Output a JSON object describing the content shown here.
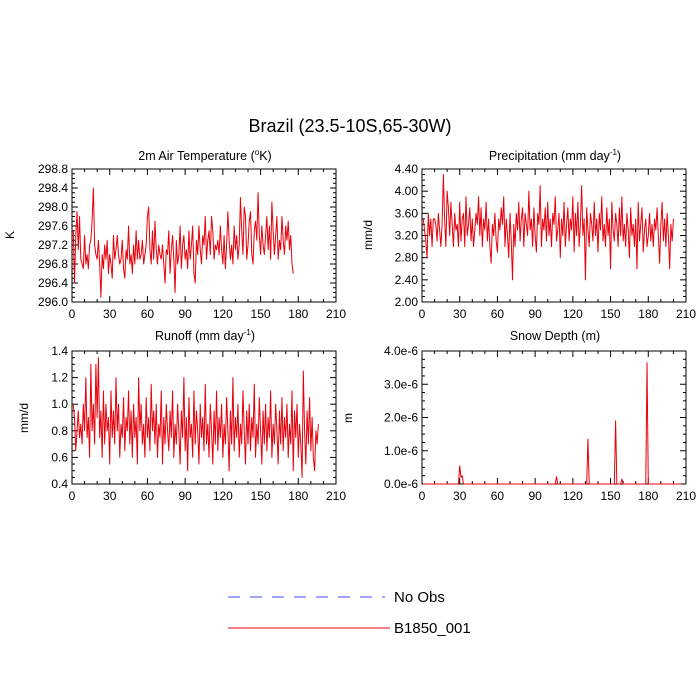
{
  "figure_title": "Brazil (23.5-10S,65-30W)",
  "colors": {
    "model_line": "#e8000b",
    "obs_line": "#4444ff",
    "axis": "#000000"
  },
  "legend": [
    {
      "label": "No Obs",
      "style": "dashed",
      "color": "#4444ff"
    },
    {
      "label": "B1850_001",
      "style": "solid",
      "color": "#e8000b"
    }
  ],
  "chart_data": [
    {
      "type": "line",
      "title": "2m Air Temperature (",
      "title_superscript": "o",
      "title_suffix": "K)",
      "ylabel": "K",
      "xlim": [
        0,
        210
      ],
      "ylim": [
        296.0,
        298.8
      ],
      "x_ticks": [
        0,
        30,
        60,
        90,
        120,
        150,
        180,
        210
      ],
      "y_ticks": [
        296.0,
        296.4,
        296.8,
        297.2,
        297.6,
        298.0,
        298.4,
        298.8
      ],
      "y_tick_labels": [
        "296.0",
        "296.4",
        "296.8",
        "297.2",
        "297.6",
        "298.0",
        "298.4",
        "298.8"
      ],
      "series": [
        {
          "name": "B1850_001",
          "x_start": 1,
          "values": [
            297.5,
            296.4,
            297.4,
            297.9,
            297.1,
            297.8,
            296.9,
            296.8,
            296.7,
            297.4,
            296.8,
            297.0,
            296.7,
            297.2,
            297.3,
            297.7,
            298.4,
            297.2,
            297.0,
            296.9,
            297.3,
            296.8,
            296.1,
            297.0,
            296.7,
            297.2,
            296.9,
            297.3,
            296.6,
            297.0,
            296.8,
            296.5,
            297.4,
            296.9,
            297.1,
            297.4,
            297.0,
            296.8,
            296.9,
            297.3,
            296.7,
            296.5,
            297.1,
            296.9,
            297.6,
            296.8,
            297.0,
            296.6,
            297.2,
            296.8,
            297.5,
            296.9,
            297.3,
            296.9,
            297.0,
            297.3,
            296.8,
            297.0,
            297.2,
            297.8,
            298.0,
            297.1,
            296.8,
            297.5,
            296.9,
            297.7,
            297.1,
            296.8,
            297.2,
            297.0,
            296.9,
            297.2,
            296.8,
            296.4,
            297.1,
            297.0,
            297.5,
            296.6,
            297.1,
            297.4,
            296.9,
            296.2,
            297.3,
            296.8,
            297.0,
            297.6,
            296.7,
            297.2,
            297.4,
            296.9,
            297.1,
            296.7,
            297.5,
            296.9,
            297.2,
            297.6,
            296.6,
            296.4,
            297.3,
            297.0,
            297.6,
            297.1,
            296.8,
            297.4,
            297.2,
            297.8,
            296.9,
            297.3,
            297.5,
            297.0,
            297.8,
            297.5,
            296.9,
            297.2,
            297.1,
            297.3,
            297.0,
            297.6,
            297.1,
            296.8,
            297.4,
            296.7,
            297.2,
            297.9,
            297.3,
            296.9,
            297.2,
            296.8,
            297.6,
            297.1,
            297.4,
            296.9,
            297.2,
            298.2,
            297.5,
            297.0,
            298.0,
            297.8,
            296.9,
            297.2,
            297.7,
            297.9,
            297.0,
            296.8,
            297.5,
            297.7,
            297.3,
            298.3,
            297.4,
            297.0,
            297.6,
            297.2,
            297.0,
            297.4,
            297.8,
            297.1,
            297.6,
            296.9,
            298.1,
            297.5,
            297.0,
            297.4,
            297.8,
            296.9,
            297.3,
            297.1,
            297.8,
            297.3,
            297.0,
            297.6,
            297.3,
            297.7,
            297.1,
            297.4,
            296.8,
            296.6
          ]
        }
      ]
    },
    {
      "type": "line",
      "title": "Precipitation (mm day",
      "title_superscript": "-1",
      "title_suffix": ")",
      "ylabel": "mm/d",
      "xlim": [
        0,
        210
      ],
      "ylim": [
        2.0,
        4.4
      ],
      "x_ticks": [
        0,
        30,
        60,
        90,
        120,
        150,
        180,
        210
      ],
      "y_ticks": [
        2.0,
        2.4,
        2.8,
        3.2,
        3.6,
        4.0,
        4.4
      ],
      "y_tick_labels": [
        "2.00",
        "2.40",
        "2.80",
        "3.20",
        "3.60",
        "4.00",
        "4.40"
      ],
      "series": [
        {
          "name": "B1850_001",
          "values": [
            3.5,
            3.3,
            3.1,
            2.8,
            3.6,
            3.2,
            3.5,
            3.0,
            3.5,
            3.5,
            3.4,
            3.1,
            3.6,
            3.3,
            3.0,
            3.4,
            4.3,
            3.5,
            3.0,
            4.0,
            3.7,
            3.2,
            3.8,
            3.4,
            3.0,
            3.6,
            3.3,
            3.4,
            3.0,
            3.8,
            3.1,
            3.5,
            3.6,
            3.0,
            3.9,
            3.2,
            3.4,
            3.7,
            3.1,
            3.5,
            3.0,
            3.3,
            3.6,
            3.4,
            3.9,
            3.2,
            3.7,
            3.0,
            3.5,
            3.3,
            3.8,
            3.1,
            3.5,
            3.0,
            2.7,
            3.4,
            3.2,
            3.6,
            3.1,
            2.9,
            3.5,
            3.3,
            3.7,
            3.4,
            3.9,
            3.0,
            3.5,
            3.2,
            2.8,
            3.6,
            3.1,
            2.4,
            3.4,
            3.0,
            3.6,
            3.3,
            3.8,
            3.1,
            3.5,
            3.7,
            3.0,
            3.6,
            3.4,
            3.2,
            4.0,
            3.3,
            3.5,
            3.0,
            3.7,
            3.2,
            2.9,
            3.6,
            3.4,
            4.1,
            3.0,
            3.5,
            3.3,
            3.7,
            3.1,
            3.8,
            3.2,
            3.5,
            3.0,
            3.6,
            3.4,
            3.9,
            3.1,
            3.3,
            3.6,
            2.8,
            3.5,
            3.2,
            3.8,
            3.0,
            3.4,
            3.7,
            3.1,
            3.5,
            3.3,
            3.9,
            2.9,
            3.6,
            3.2,
            3.8,
            3.0,
            3.4,
            4.1,
            3.2,
            3.5,
            2.4,
            3.7,
            3.3,
            3.0,
            3.6,
            3.4,
            3.1,
            3.8,
            3.2,
            3.5,
            2.9,
            3.6,
            3.3,
            3.9,
            3.1,
            3.4,
            3.0,
            3.7,
            3.2,
            3.5,
            2.6,
            3.8,
            3.3,
            3.1,
            3.6,
            3.4,
            3.0,
            3.7,
            3.2,
            3.9,
            3.1,
            3.4,
            3.0,
            3.6,
            3.3,
            2.8,
            3.7,
            3.2,
            3.4,
            3.0,
            3.5,
            2.6,
            3.8,
            3.1,
            3.4,
            3.7,
            2.9,
            3.3,
            3.5,
            3.0,
            3.2,
            3.6,
            3.1,
            3.4,
            3.0,
            3.5,
            3.3,
            3.7,
            3.2,
            2.7,
            3.4,
            3.8,
            3.1,
            3.5,
            3.0,
            3.6,
            3.2,
            2.6,
            3.4,
            3.1,
            3.5
          ]
        }
      ]
    },
    {
      "type": "line",
      "title": "Runoff (mm day",
      "title_superscript": "-1",
      "title_suffix": ")",
      "ylabel": "mm/d",
      "xlim": [
        0,
        210
      ],
      "ylim": [
        0.4,
        1.4
      ],
      "x_ticks": [
        0,
        30,
        60,
        90,
        120,
        150,
        180,
        210
      ],
      "y_ticks": [
        0.4,
        0.6,
        0.8,
        1.0,
        1.2,
        1.4
      ],
      "y_tick_labels": [
        "0.4",
        "0.6",
        "0.8",
        "1.0",
        "1.2",
        "1.4"
      ],
      "series": [
        {
          "name": "B1850_001",
          "values": [
            1.0,
            0.9,
            0.65,
            0.8,
            0.95,
            0.75,
            0.85,
            0.7,
            1.0,
            0.8,
            1.2,
            0.75,
            0.9,
            0.6,
            1.3,
            0.8,
            1.0,
            0.7,
            1.3,
            0.9,
            1.35,
            0.75,
            0.95,
            0.6,
            1.1,
            0.7,
            1.0,
            0.8,
            0.9,
            0.55,
            1.1,
            0.75,
            0.95,
            0.7,
            1.2,
            0.8,
            1.0,
            0.6,
            0.85,
            0.75,
            1.05,
            0.65,
            0.9,
            0.8,
            1.1,
            0.7,
            0.95,
            0.6,
            1.0,
            0.75,
            0.9,
            0.55,
            1.2,
            0.8,
            1.0,
            0.7,
            0.85,
            0.6,
            1.05,
            0.75,
            0.9,
            0.65,
            1.15,
            0.8,
            0.95,
            0.7,
            1.0,
            0.6,
            0.85,
            0.75,
            1.1,
            0.55,
            0.9,
            0.7,
            1.0,
            0.8,
            0.65,
            0.95,
            0.75,
            1.1,
            0.6,
            0.85,
            0.7,
            1.0,
            0.8,
            0.55,
            0.95,
            0.75,
            1.2,
            0.65,
            0.9,
            0.5,
            1.05,
            0.75,
            0.85,
            0.6,
            1.1,
            0.7,
            0.95,
            0.8,
            0.55,
            1.0,
            0.75,
            0.9,
            0.65,
            1.15,
            0.7,
            0.85,
            0.6,
            1.0,
            0.8,
            0.55,
            0.95,
            0.7,
            1.1,
            0.65,
            0.9,
            0.75,
            1.0,
            0.6,
            0.85,
            0.7,
            1.05,
            0.8,
            0.5,
            0.95,
            0.7,
            1.2,
            0.65,
            0.9,
            0.75,
            1.0,
            0.6,
            0.85,
            0.7,
            1.1,
            0.8,
            0.55,
            0.95,
            0.7,
            1.0,
            0.65,
            0.9,
            0.75,
            1.15,
            0.6,
            0.85,
            0.7,
            1.05,
            0.8,
            0.55,
            0.95,
            0.7,
            1.0,
            0.65,
            0.9,
            0.75,
            1.1,
            0.6,
            0.85,
            0.7,
            1.0,
            0.8,
            0.55,
            0.95,
            0.7,
            1.05,
            0.65,
            0.9,
            0.75,
            1.0,
            0.6,
            0.85,
            0.7,
            1.1,
            0.5,
            0.95,
            0.75,
            1.0,
            0.6,
            0.85,
            0.7,
            0.45,
            1.25,
            0.8,
            0.55,
            0.95,
            0.7,
            1.05,
            0.65,
            0.9,
            0.6,
            0.5,
            0.8,
            0.7,
            0.85
          ]
        }
      ]
    },
    {
      "type": "line",
      "title": "Snow Depth (m)",
      "title_superscript": "",
      "title_suffix": "",
      "ylabel": "m",
      "xlim": [
        0,
        210
      ],
      "ylim": [
        0.0,
        4e-06
      ],
      "x_ticks": [
        0,
        30,
        60,
        90,
        120,
        150,
        180,
        210
      ],
      "y_ticks": [
        0.0,
        1e-06,
        2e-06,
        3e-06,
        4e-06
      ],
      "y_tick_labels": [
        "0.0e-6",
        "1.0e-6",
        "2.0e-6",
        "3.0e-6",
        "4.0e-6"
      ],
      "series": [
        {
          "name": "B1850_001",
          "values": [
            0,
            0,
            0,
            0,
            0,
            0,
            0,
            0,
            0,
            0,
            0,
            0,
            0,
            0,
            0,
            0,
            0,
            0,
            0,
            0,
            0,
            0,
            0,
            0,
            0,
            0,
            0,
            0,
            0,
            5.5e-07,
            2e-07,
            2.5e-07,
            0,
            0,
            0,
            0,
            0,
            0,
            0,
            0,
            0,
            0,
            0,
            0,
            0,
            0,
            0,
            0,
            0,
            0,
            0,
            0,
            0,
            0,
            0,
            0,
            0,
            0,
            0,
            0,
            0,
            0,
            0,
            0,
            0,
            0,
            0,
            0,
            0,
            0,
            0,
            0,
            0,
            0,
            0,
            0,
            0,
            0,
            0,
            0,
            0,
            0,
            0,
            0,
            0,
            0,
            0,
            0,
            0,
            0,
            0,
            0,
            0,
            0,
            0,
            0,
            0,
            0,
            0,
            0,
            0,
            0,
            0,
            0,
            0,
            0,
            2.2e-07,
            0,
            0,
            0,
            0,
            0,
            0,
            0,
            0,
            0,
            0,
            0,
            0,
            0,
            0,
            0,
            0,
            0,
            0,
            0,
            0,
            0,
            0,
            0,
            0,
            1.35e-06,
            0,
            0,
            0,
            0,
            0,
            0,
            0,
            0,
            0,
            0,
            0,
            0,
            0,
            0,
            0,
            0,
            0,
            0,
            0,
            0,
            0,
            1.9e-06,
            0,
            0,
            0,
            0,
            1.5e-07,
            0,
            0,
            0,
            0,
            0,
            0,
            0,
            0,
            0,
            0,
            0,
            0,
            0,
            0,
            0,
            0,
            0,
            0,
            0,
            3.65e-06,
            0,
            0,
            0,
            0,
            0,
            0,
            0,
            0,
            0,
            0,
            0,
            0,
            0,
            0,
            0,
            0,
            0,
            0,
            0,
            0,
            0,
            0,
            0,
            0,
            0,
            0,
            0
          ]
        }
      ]
    }
  ]
}
